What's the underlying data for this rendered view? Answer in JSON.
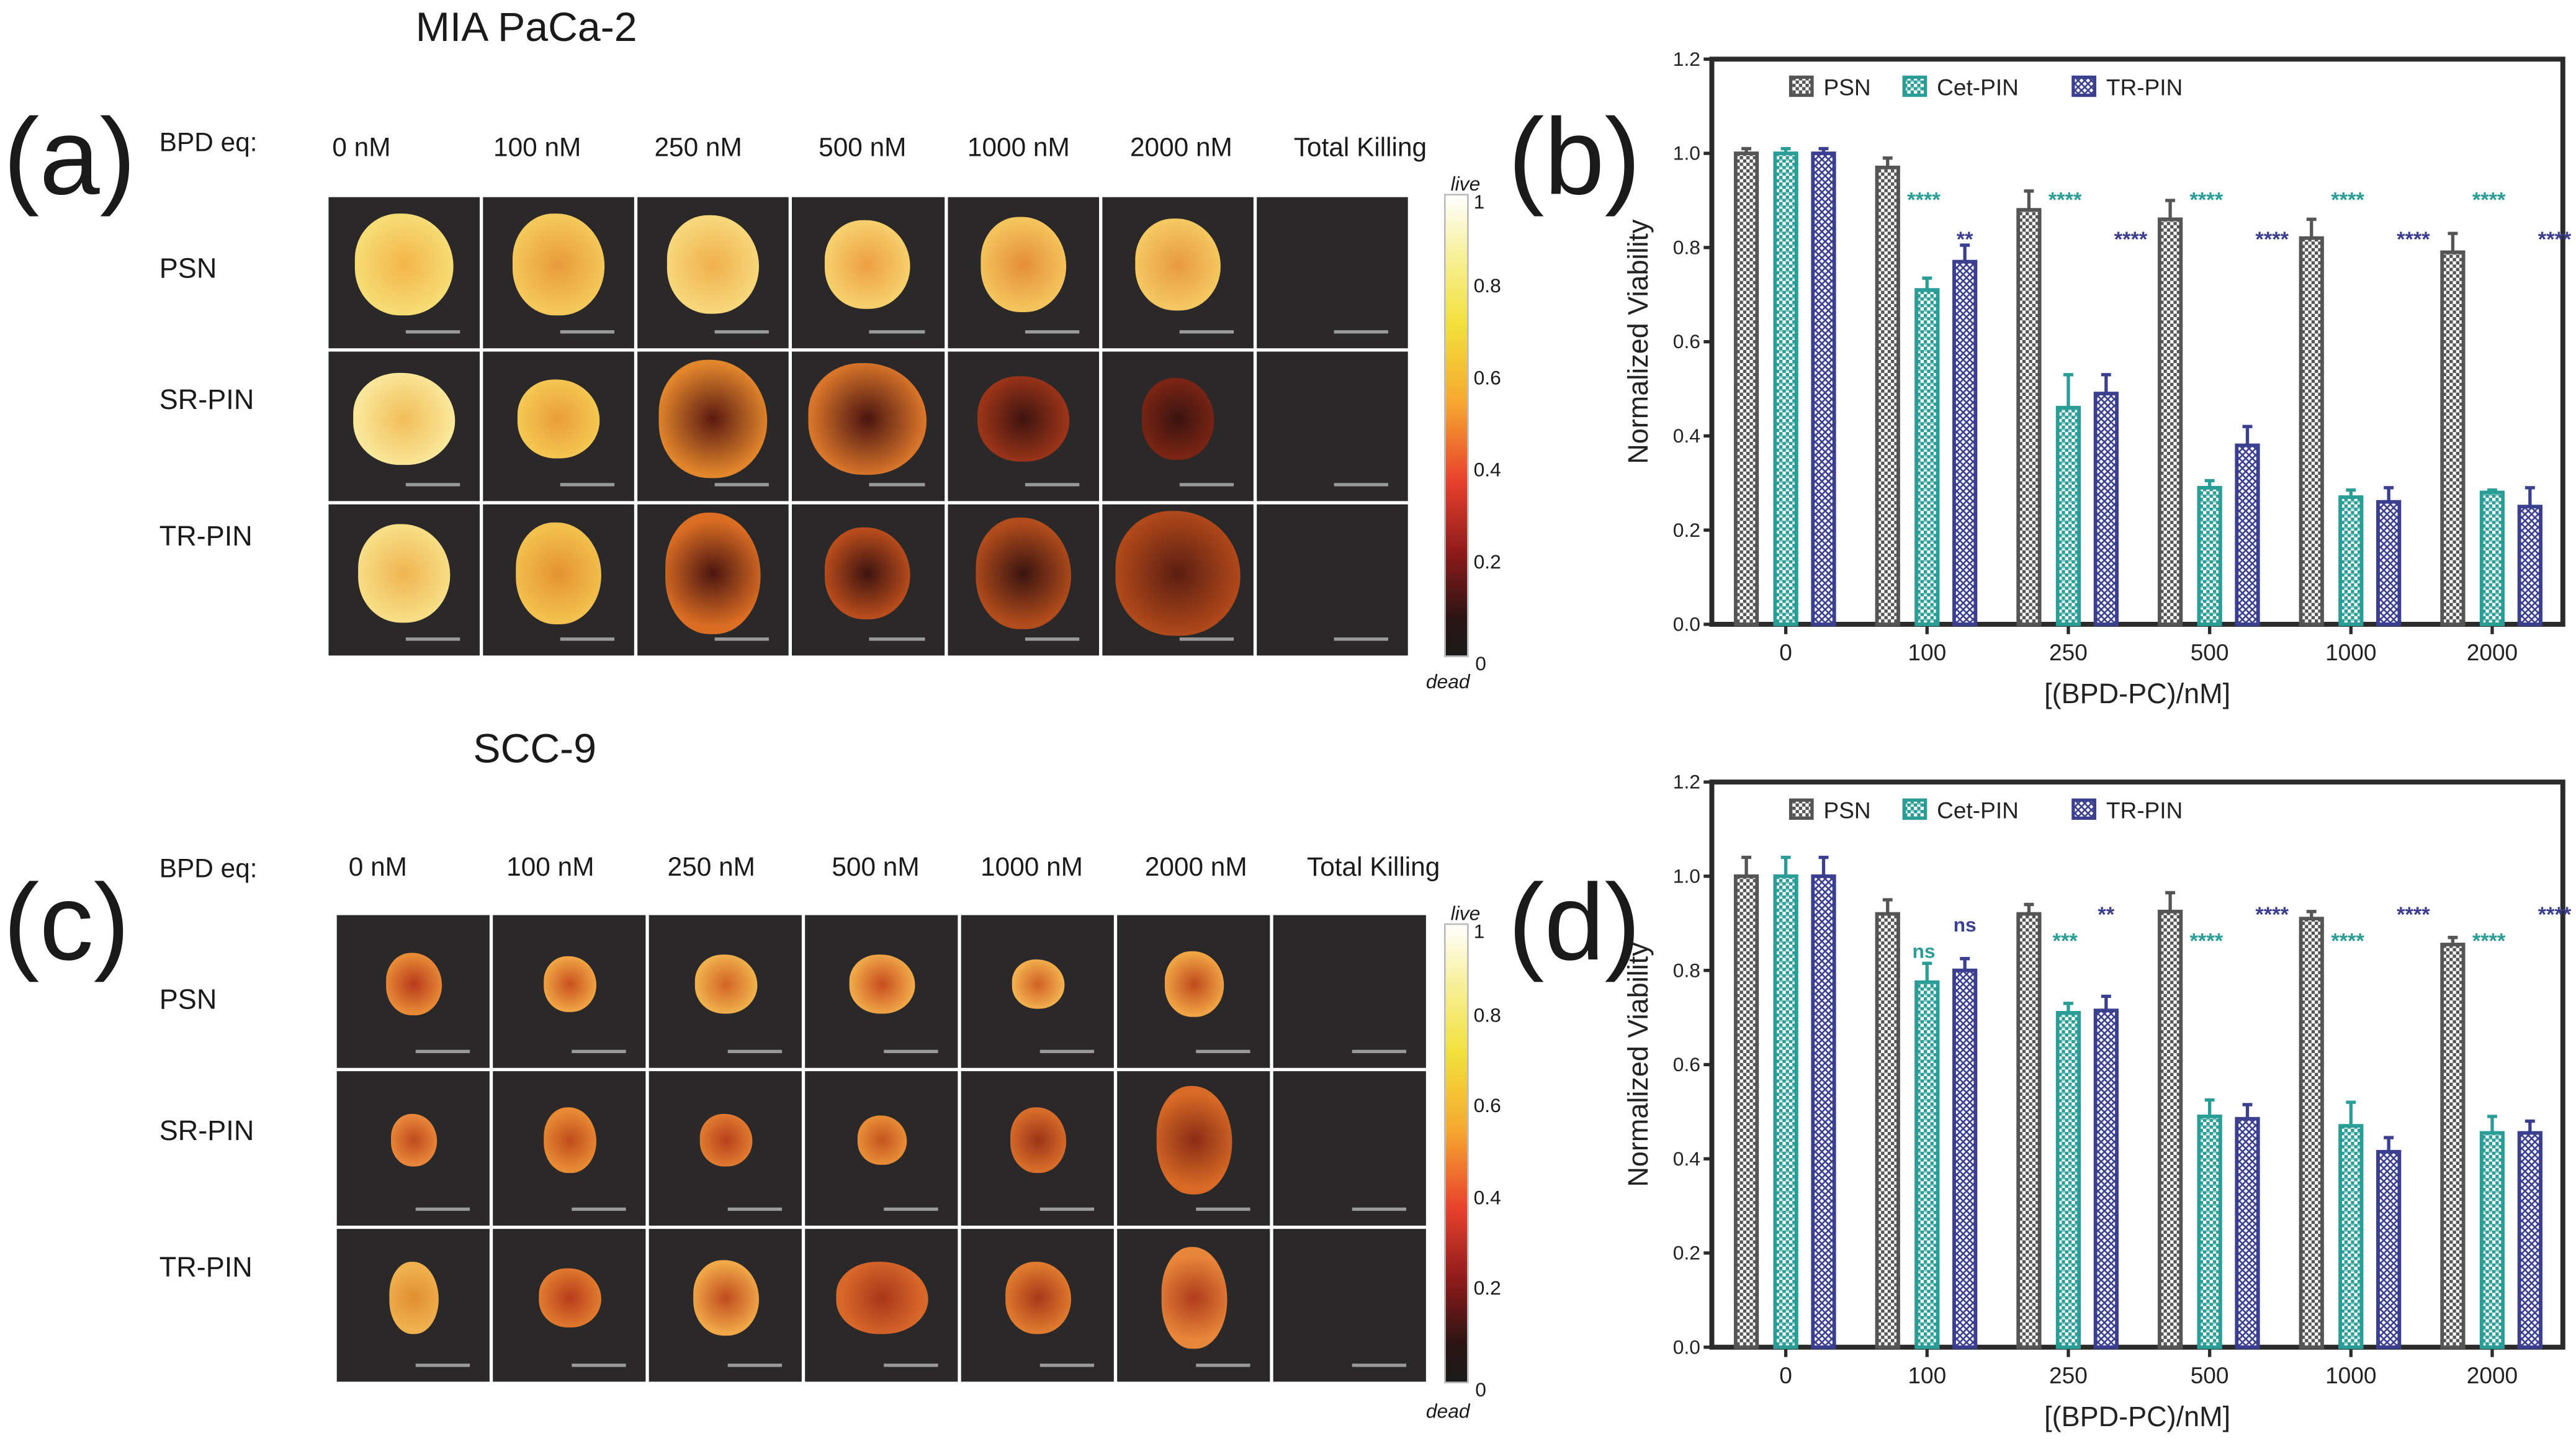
{
  "panels": {
    "a": {
      "letter": "(a)",
      "title": "MIA PaCa-2",
      "header_label": "BPD eq:",
      "columns": [
        "0 nM",
        "100 nM",
        "250 nM",
        "500 nM",
        "1000 nM",
        "2000 nM",
        "Total Killing"
      ],
      "rows": [
        "PSN",
        "SR-PIN",
        "TR-PIN"
      ],
      "colorbar": {
        "top_label": "live",
        "bottom_label": "dead",
        "ticks": [
          "1",
          "0.8",
          "0.6",
          "0.4",
          "0.2",
          "0"
        ]
      }
    },
    "b": {
      "letter": "(b)"
    },
    "c": {
      "letter": "(c)",
      "title": "SCC-9",
      "header_label": "BPD eq:",
      "columns": [
        "0 nM",
        "100 nM",
        "250 nM",
        "500 nM",
        "1000 nM",
        "2000 nM",
        "Total Killing"
      ],
      "rows": [
        "PSN",
        "SR-PIN",
        "TR-PIN"
      ],
      "colorbar": {
        "top_label": "live",
        "bottom_label": "dead",
        "ticks": [
          "1",
          "0.8",
          "0.6",
          "0.4",
          "0.2",
          "0"
        ]
      }
    },
    "d": {
      "letter": "(d)"
    }
  },
  "chart_data": [
    {
      "id": "b",
      "type": "bar",
      "title": "",
      "xlabel": "[(BPD-PC)/nM]",
      "ylabel": "Normalized  Viability",
      "ylim": [
        0,
        1.2
      ],
      "yticks": [
        "0.0",
        "0.2",
        "0.4",
        "0.6",
        "0.8",
        "1.0",
        "1.2"
      ],
      "categories": [
        "0",
        "100",
        "250",
        "500",
        "1000",
        "2000"
      ],
      "legend_position": "top-left",
      "series": [
        {
          "name": "PSN",
          "color": "#555555",
          "values": [
            1.0,
            0.97,
            0.88,
            0.86,
            0.82,
            0.79
          ],
          "errors": [
            0.01,
            0.02,
            0.04,
            0.04,
            0.04,
            0.04
          ],
          "significance": [
            "",
            "",
            "",
            "",
            "",
            ""
          ]
        },
        {
          "name": "Cet-PIN",
          "color": "#2a9d96",
          "values": [
            1.0,
            0.71,
            0.46,
            0.29,
            0.27,
            0.28
          ],
          "errors": [
            0.01,
            0.025,
            0.07,
            0.015,
            0.015,
            0.005
          ],
          "significance": [
            "",
            "****",
            "****",
            "****",
            "****",
            "****"
          ]
        },
        {
          "name": "TR-PIN",
          "color": "#3b3f8f",
          "values": [
            1.0,
            0.77,
            0.49,
            0.38,
            0.26,
            0.25
          ],
          "errors": [
            0.01,
            0.035,
            0.04,
            0.04,
            0.03,
            0.04
          ],
          "significance": [
            "",
            "**",
            "****",
            "****",
            "****",
            "****"
          ]
        }
      ]
    },
    {
      "id": "d",
      "type": "bar",
      "title": "",
      "xlabel": "[(BPD-PC)/nM]",
      "ylabel": "Normalized  Viability",
      "ylim": [
        0,
        1.2
      ],
      "yticks": [
        "0.0",
        "0.2",
        "0.4",
        "0.6",
        "0.8",
        "1.0",
        "1.2"
      ],
      "categories": [
        "0",
        "100",
        "250",
        "500",
        "1000",
        "2000"
      ],
      "legend_position": "top-left",
      "series": [
        {
          "name": "PSN",
          "color": "#555555",
          "values": [
            1.0,
            0.92,
            0.92,
            0.925,
            0.91,
            0.855
          ],
          "errors": [
            0.04,
            0.03,
            0.02,
            0.04,
            0.015,
            0.015
          ],
          "significance": [
            "",
            "",
            "",
            "",
            "",
            ""
          ]
        },
        {
          "name": "Cet-PIN",
          "color": "#2a9d96",
          "values": [
            1.0,
            0.775,
            0.71,
            0.49,
            0.47,
            0.455
          ],
          "errors": [
            0.04,
            0.04,
            0.02,
            0.035,
            0.05,
            0.035
          ],
          "significance": [
            "",
            "ns",
            "***",
            "****",
            "****",
            "****"
          ]
        },
        {
          "name": "TR-PIN",
          "color": "#3b3f8f",
          "values": [
            1.0,
            0.8,
            0.715,
            0.485,
            0.415,
            0.455
          ],
          "errors": [
            0.04,
            0.025,
            0.03,
            0.03,
            0.03,
            0.025
          ],
          "significance": [
            "",
            "ns",
            "**",
            "****",
            "****",
            "****"
          ]
        }
      ]
    }
  ]
}
